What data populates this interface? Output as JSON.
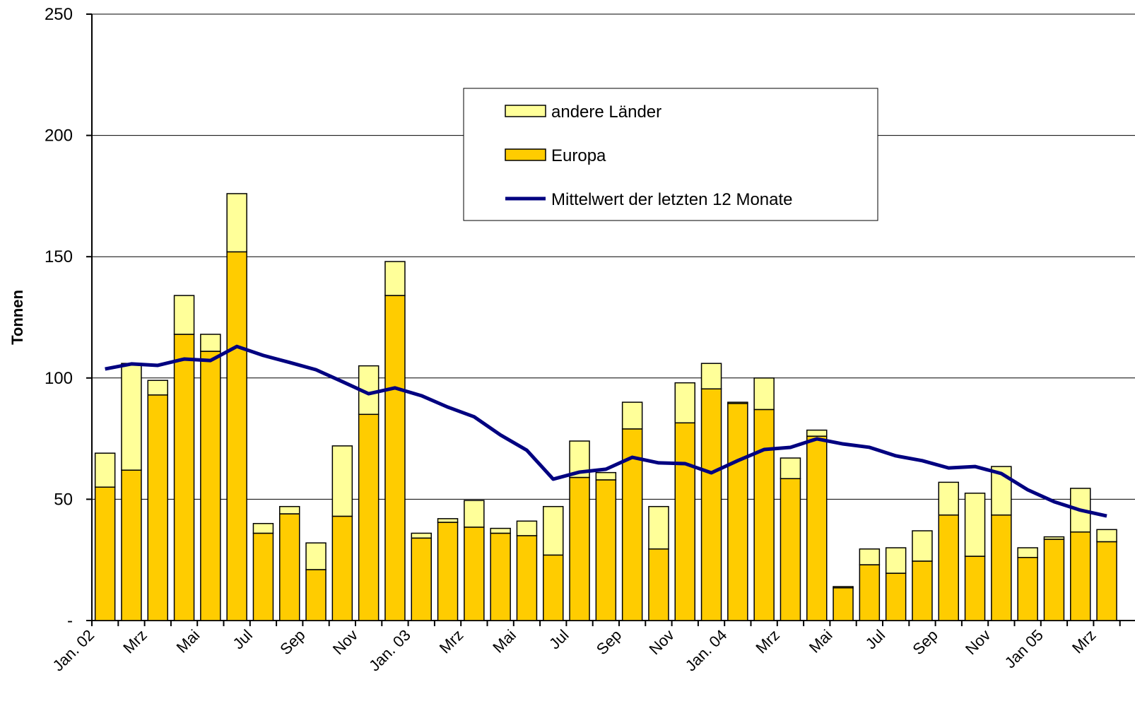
{
  "chart_data": {
    "type": "bar",
    "stacked": true,
    "y_label": "Tonnen",
    "categories": [
      "Jan. 02",
      null,
      "Mrz",
      null,
      "Mai",
      null,
      "Jul",
      null,
      "Sep",
      null,
      "Nov",
      null,
      "Jan. 03",
      null,
      "Mrz",
      null,
      "Mai",
      null,
      "Jul",
      null,
      "Sep",
      null,
      "Nov",
      null,
      "Jan. 04",
      null,
      "Mrz",
      null,
      "Mai",
      null,
      "Jul",
      null,
      "Sep",
      null,
      "Nov",
      null,
      "Jan 05",
      null,
      "Mrz"
    ],
    "series": [
      {
        "name": "Europa",
        "color": "#ffcc00",
        "values": [
          55,
          62,
          93,
          118,
          111,
          152,
          36,
          44,
          21,
          43,
          85,
          134,
          34,
          40.5,
          38.5,
          36,
          35,
          27,
          59,
          58,
          79,
          29.5,
          81.5,
          95.5,
          89.5,
          87,
          58.5,
          76,
          13.5,
          23,
          19.5,
          24.5,
          43.5,
          26.5,
          43.5,
          26,
          33.5,
          36.5,
          32.5
        ]
      },
      {
        "name": "andere Länder",
        "color": "#ffff99",
        "values": [
          14,
          44,
          6,
          16,
          7,
          24,
          4,
          3,
          11,
          29,
          20,
          14,
          2,
          1.5,
          11,
          2,
          6,
          20,
          15,
          3,
          11,
          17.5,
          16.5,
          10.5,
          0.5,
          13,
          8.5,
          2.5,
          0.5,
          6.5,
          10.5,
          12.5,
          13.5,
          26,
          20,
          4,
          1,
          18,
          5
        ]
      },
      {
        "name": "Mittelwert der letzten 12 Monate",
        "type": "line",
        "color": "#000080",
        "values": [
          103.7,
          105.8,
          105.2,
          107.8,
          107.2,
          113,
          109.3,
          106.4,
          103.4,
          98.5,
          93.5,
          95.9,
          92.7,
          88,
          84,
          76.5,
          70.2,
          58.3,
          61.2,
          62.4,
          67.3,
          65,
          64.7,
          60.9,
          65.9,
          70.5,
          71.4,
          74.9,
          72.8,
          71.4,
          67.9,
          65.9,
          62.9,
          63.5,
          60.6,
          53.9,
          49,
          45.5,
          43.1
        ]
      }
    ],
    "legend_order": [
      1,
      0,
      2
    ],
    "ylim": [
      0,
      250
    ],
    "yticks": [
      {
        "value": 0,
        "label": "-"
      },
      50,
      100,
      150,
      200,
      250
    ],
    "grid": true
  }
}
